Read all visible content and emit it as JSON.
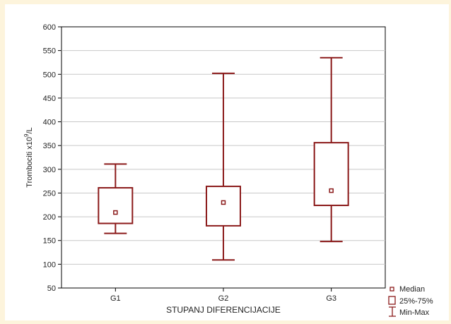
{
  "chart_data": {
    "type": "box",
    "categories": [
      "G1",
      "G2",
      "G3"
    ],
    "boxes": [
      {
        "min": 165,
        "q1": 186,
        "median": 209,
        "q3": 261,
        "max": 311
      },
      {
        "min": 109,
        "q1": 181,
        "median": 230,
        "q3": 264,
        "max": 502
      },
      {
        "min": 148,
        "q1": 224,
        "median": 255,
        "q3": 356,
        "max": 535
      }
    ],
    "xlabel": "STUPANJ DIFERENCIJACIJE",
    "ylabel_main": "Trombociti x10",
    "ylabel_sup": "9",
    "ylabel_tail": "/L",
    "ylim": [
      50,
      600
    ],
    "yticks": [
      50,
      100,
      150,
      200,
      250,
      300,
      350,
      400,
      450,
      500,
      550,
      600
    ],
    "grid": true,
    "legend": {
      "position": "bottom-right",
      "entries": [
        "Median",
        "25%-75%",
        "Min-Max"
      ]
    },
    "colors": {
      "box": "#8b1a1a",
      "grid": "#c8c8c8",
      "panel_bg": "#fdf4dc",
      "frame_bg": "#dce6f2"
    }
  }
}
